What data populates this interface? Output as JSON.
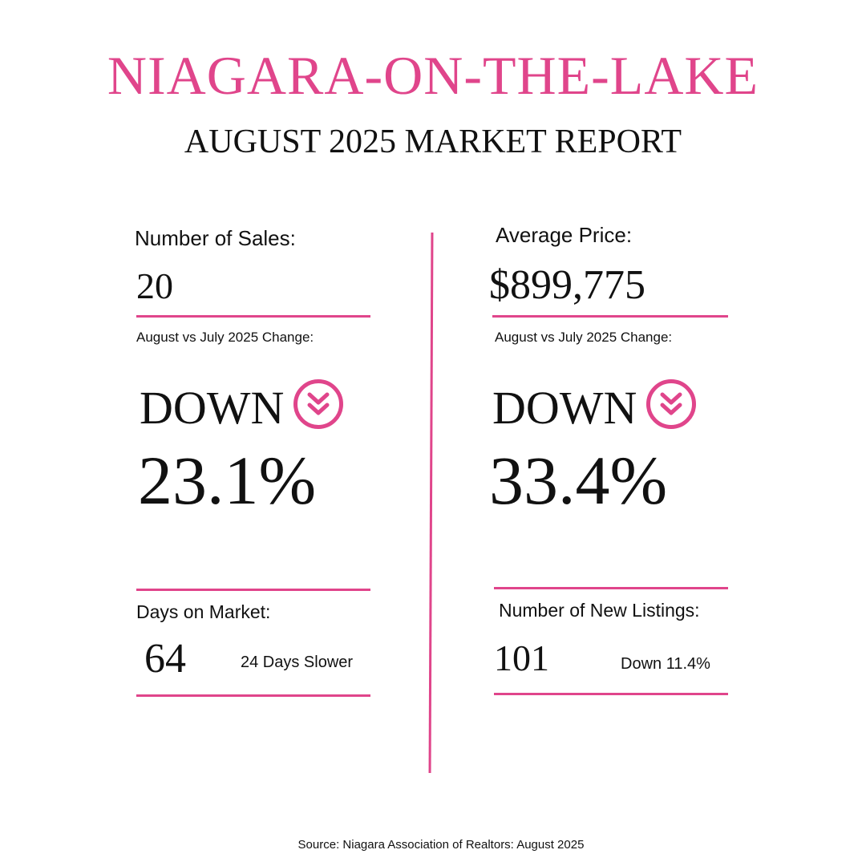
{
  "header": {
    "title": "NIAGARA-ON-THE-LAKE",
    "subtitle": "AUGUST 2025 MARKET REPORT"
  },
  "sales": {
    "label": "Number of Sales:",
    "value": "20",
    "change_label": "August vs July 2025 Change:",
    "direction": "DOWN",
    "percent": "23.1%",
    "icon": "double-chevron-down-icon"
  },
  "price": {
    "label": "Average Price:",
    "value": "$899,775",
    "change_label": "August vs July 2025 Change:",
    "direction": "DOWN",
    "percent": "33.4%",
    "icon": "double-chevron-down-icon"
  },
  "days_on_market": {
    "label": "Days on Market:",
    "value": "64",
    "note": "24 Days Slower"
  },
  "new_listings": {
    "label": "Number of New Listings:",
    "value": "101",
    "note": "Down 11.4%"
  },
  "footer": {
    "source": "Source: Niagara Association of Realtors: August 2025"
  },
  "colors": {
    "accent": "#e0458b",
    "text": "#111111",
    "background": "#ffffff"
  }
}
